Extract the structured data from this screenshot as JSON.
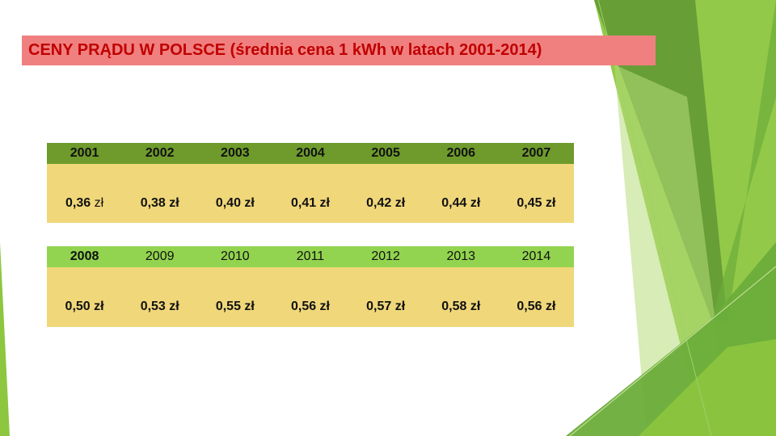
{
  "title": "CENY PRĄDU W POLSCE (średnia cena 1 kWh w latach 2001-2014)",
  "table1": {
    "years": [
      "2001",
      "2002",
      "2003",
      "2004",
      "2005",
      "2006",
      "2007"
    ],
    "prices": [
      "0,36",
      "0,38 zł",
      "0,40 zł",
      "0,41 zł",
      "0,42 zł",
      "0,44 zł",
      "0,45 zł"
    ],
    "first_price_unit": "zł"
  },
  "table2": {
    "years": [
      "2008",
      "2009",
      "2010",
      "2011",
      "2012",
      "2013",
      "2014"
    ],
    "prices": [
      "0,50 zł",
      "0,53 zł",
      "0,55 zł",
      "0,56 zł",
      "0,57 zł",
      "0,58 zł",
      "0,56 zł"
    ]
  },
  "colors": {
    "title_bg": "#f08080",
    "title_text": "#c00000",
    "header1_bg": "#6e9b2c",
    "header2_bg": "#92d44f",
    "price_bg": "#f0d77a",
    "accent_green": "#8dc63f"
  }
}
